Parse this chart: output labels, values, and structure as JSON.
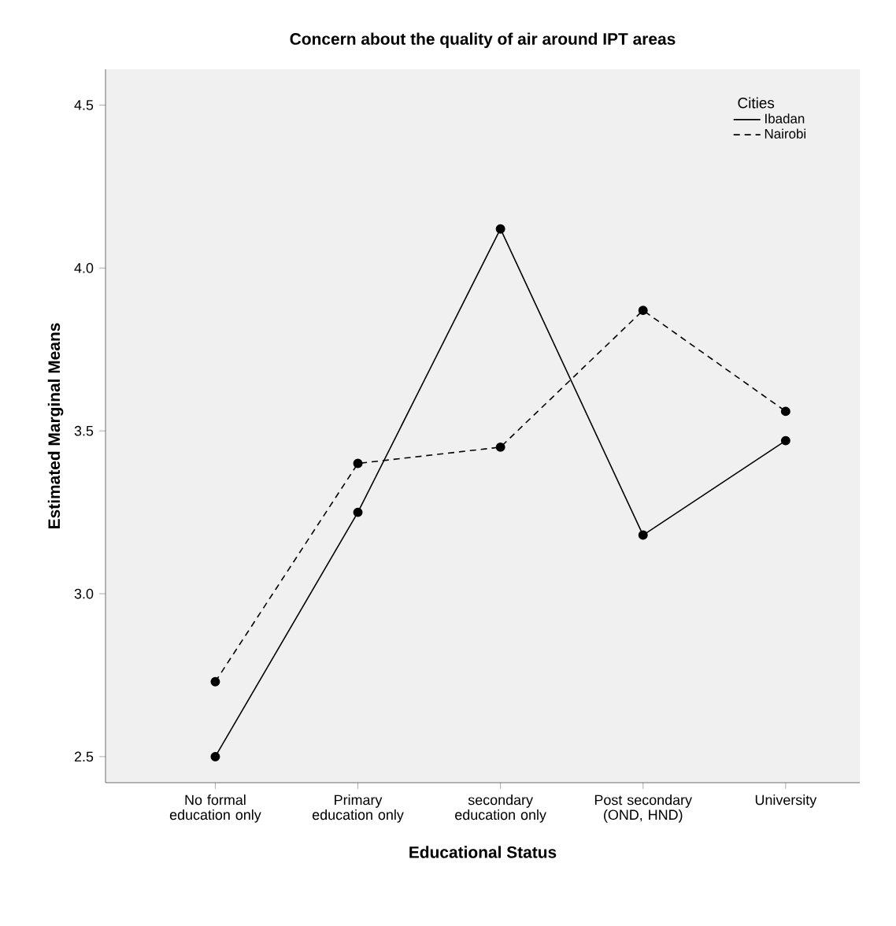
{
  "chart_data": {
    "type": "line",
    "title": "Concern about the quality of air around IPT areas",
    "xlabel": "Educational Status",
    "ylabel": "Estimated Marginal Means",
    "categories": [
      "No formal education only",
      "Primary education only",
      "secondary education only",
      "Post secondary (OND, HND)",
      "University"
    ],
    "series": [
      {
        "name": "Ibadan",
        "color": "#000000",
        "line_style": "solid",
        "values": [
          2.5,
          3.25,
          4.12,
          3.18,
          3.47
        ]
      },
      {
        "name": "Nairobi",
        "color": "#000000",
        "line_style": "dashed",
        "values": [
          2.73,
          3.4,
          3.45,
          3.87,
          3.56
        ]
      }
    ],
    "ylim": [
      2.42,
      4.61
    ],
    "yticks": [
      {
        "value": 2.5,
        "label": "2.5"
      },
      {
        "value": 3.0,
        "label": "3.0"
      },
      {
        "value": 3.5,
        "label": "3.5"
      },
      {
        "value": 4.0,
        "label": "4.0"
      },
      {
        "value": 4.5,
        "label": "4.5"
      }
    ],
    "legend": "top right",
    "legend_title": "Cities",
    "marker": "circle",
    "grid": false
  }
}
